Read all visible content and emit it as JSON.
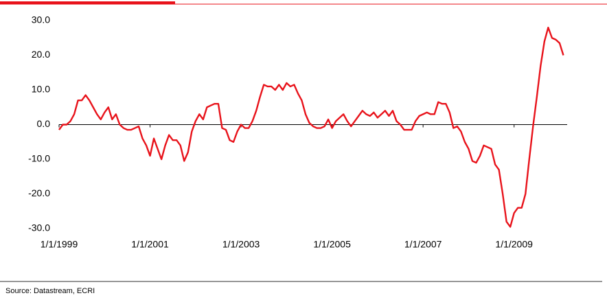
{
  "chart_data": {
    "type": "line",
    "x": [
      "1/1/1999",
      "2/1/1999",
      "3/1/1999",
      "4/1/1999",
      "5/1/1999",
      "6/1/1999",
      "7/1/1999",
      "8/1/1999",
      "9/1/1999",
      "10/1/1999",
      "11/1/1999",
      "12/1/1999",
      "1/1/2000",
      "2/1/2000",
      "3/1/2000",
      "4/1/2000",
      "5/1/2000",
      "6/1/2000",
      "7/1/2000",
      "8/1/2000",
      "9/1/2000",
      "10/1/2000",
      "11/1/2000",
      "12/1/2000",
      "1/1/2001",
      "2/1/2001",
      "3/1/2001",
      "4/1/2001",
      "5/1/2001",
      "6/1/2001",
      "7/1/2001",
      "8/1/2001",
      "9/1/2001",
      "10/1/2001",
      "11/1/2001",
      "12/1/2001",
      "1/1/2002",
      "2/1/2002",
      "3/1/2002",
      "4/1/2002",
      "5/1/2002",
      "6/1/2002",
      "7/1/2002",
      "8/1/2002",
      "9/1/2002",
      "10/1/2002",
      "11/1/2002",
      "12/1/2002",
      "1/1/2003",
      "2/1/2003",
      "3/1/2003",
      "4/1/2003",
      "5/1/2003",
      "6/1/2003",
      "7/1/2003",
      "8/1/2003",
      "9/1/2003",
      "10/1/2003",
      "11/1/2003",
      "12/1/2003",
      "1/1/2004",
      "2/1/2004",
      "3/1/2004",
      "4/1/2004",
      "5/1/2004",
      "6/1/2004",
      "7/1/2004",
      "8/1/2004",
      "9/1/2004",
      "10/1/2004",
      "11/1/2004",
      "12/1/2004",
      "1/1/2005",
      "2/1/2005",
      "3/1/2005",
      "4/1/2005",
      "5/1/2005",
      "6/1/2005",
      "7/1/2005",
      "8/1/2005",
      "9/1/2005",
      "10/1/2005",
      "11/1/2005",
      "12/1/2005",
      "1/1/2006",
      "2/1/2006",
      "3/1/2006",
      "4/1/2006",
      "5/1/2006",
      "6/1/2006",
      "7/1/2006",
      "8/1/2006",
      "9/1/2006",
      "10/1/2006",
      "11/1/2006",
      "12/1/2006",
      "1/1/2007",
      "2/1/2007",
      "3/1/2007",
      "4/1/2007",
      "5/1/2007",
      "6/1/2007",
      "7/1/2007",
      "8/1/2007",
      "9/1/2007",
      "10/1/2007",
      "11/1/2007",
      "12/1/2007",
      "1/1/2008",
      "2/1/2008",
      "3/1/2008",
      "4/1/2008",
      "5/1/2008",
      "6/1/2008",
      "7/1/2008",
      "8/1/2008",
      "9/1/2008",
      "10/1/2008",
      "11/1/2008",
      "12/1/2008",
      "1/1/2009",
      "2/1/2009",
      "3/1/2009",
      "4/1/2009",
      "5/1/2009",
      "6/1/2009",
      "7/1/2009",
      "8/1/2009",
      "9/1/2009",
      "10/1/2009",
      "11/1/2009",
      "12/1/2009",
      "1/1/2010",
      "2/1/2010"
    ],
    "values": [
      -1.5,
      0,
      0,
      1,
      3,
      7,
      7,
      8.5,
      7,
      5,
      3,
      1.5,
      3.5,
      5,
      1.5,
      3,
      0,
      -1,
      -1.5,
      -1.5,
      -1,
      -0.5,
      -4,
      -6,
      -9,
      -4,
      -7,
      -10,
      -6,
      -3,
      -4.5,
      -4.5,
      -6,
      -10.5,
      -8,
      -2,
      1,
      3,
      1.5,
      5,
      5.5,
      6,
      6,
      -1,
      -1.5,
      -4.5,
      -5,
      -2,
      0,
      -1,
      -1,
      1,
      4,
      8,
      11.5,
      11,
      11,
      10,
      11.5,
      10,
      12,
      11,
      11.5,
      9,
      7,
      3,
      0.5,
      -0.5,
      -1,
      -1,
      -0.5,
      1.5,
      -1,
      1,
      2,
      3,
      1,
      -0.5,
      1,
      2.5,
      4,
      3,
      2.5,
      3.5,
      2,
      3,
      4,
      2.5,
      4,
      1,
      0,
      -1.5,
      -1.5,
      -1.5,
      1,
      2.5,
      3,
      3.5,
      3,
      3,
      6.5,
      6,
      6,
      3.5,
      -1,
      -0.5,
      -2,
      -5,
      -7,
      -10.5,
      -11,
      -9,
      -6,
      -6.5,
      -7,
      -11.5,
      -13,
      -20,
      -28,
      -29.5,
      -25.5,
      -24,
      -24,
      -20,
      -10,
      -0.5,
      8,
      17,
      24,
      28,
      25,
      24.5,
      23.5,
      20
    ],
    "color": "#e8121a",
    "xlim": [
      "1/1/1999",
      "3/1/2010"
    ],
    "xticks": [
      "1/1/1999",
      "1/1/2001",
      "1/1/2003",
      "1/1/2005",
      "1/1/2007",
      "1/1/2009"
    ],
    "ylim": [
      -30,
      30
    ],
    "yticks": [
      {
        "value": -30,
        "label": "-30.0"
      },
      {
        "value": -20,
        "label": "-20.0"
      },
      {
        "value": -10,
        "label": "-10.0"
      },
      {
        "value": 0,
        "label": "0.0"
      },
      {
        "value": 10,
        "label": "10.0"
      },
      {
        "value": 20,
        "label": "20.0"
      },
      {
        "value": 30,
        "label": "30.0"
      }
    ],
    "source": "Source: Datastream, ECRI"
  }
}
